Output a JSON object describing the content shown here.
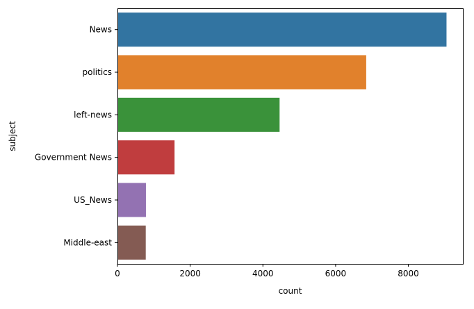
{
  "chart_data": {
    "type": "bar",
    "orientation": "horizontal",
    "categories": [
      "News",
      "politics",
      "left-news",
      "Government News",
      "US_News",
      "Middle-east"
    ],
    "values": [
      9050,
      6841,
      4459,
      1570,
      783,
      778
    ],
    "colors": [
      "#3274a1",
      "#e1812c",
      "#3a923a",
      "#c03d3e",
      "#9372b2",
      "#845b53"
    ],
    "xlabel": "count",
    "ylabel": "subject",
    "xlim": [
      0,
      9500
    ],
    "xticks": [
      0,
      2000,
      4000,
      6000,
      8000
    ],
    "grid": false
  }
}
